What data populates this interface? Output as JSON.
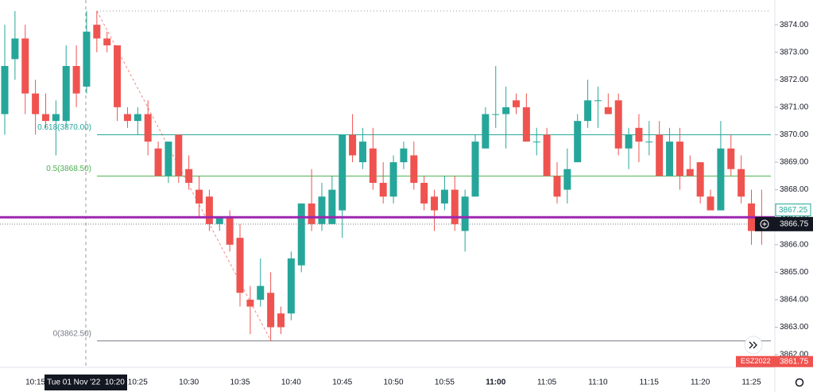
{
  "chart_data": {
    "type": "candlestick",
    "categories": [
      null,
      null,
      null,
      "10:15",
      null,
      null,
      null,
      null,
      null,
      null,
      null,
      null,
      null,
      "10:25",
      null,
      null,
      null,
      null,
      "10:30",
      null,
      null,
      null,
      null,
      "10:35",
      null,
      null,
      null,
      null,
      "10:40",
      null,
      null,
      null,
      null,
      "10:45",
      null,
      null,
      null,
      null,
      "10:50",
      null,
      null,
      null,
      null,
      "10:55",
      null,
      null,
      null,
      null,
      "11:00",
      null,
      null,
      null,
      null,
      "11:05",
      null,
      null,
      null,
      null,
      "11:10",
      null,
      null,
      null,
      null,
      "11:15",
      null,
      null,
      null,
      null,
      "11:20",
      null,
      null,
      null,
      null,
      "11:25",
      null,
      null
    ],
    "open": [
      3870.75,
      3872.75,
      3873.5,
      3871.5,
      3870.75,
      3870.5,
      3870.5,
      3872.5,
      3871.75,
      3874,
      3873.5,
      3873.25,
      3870.75,
      3870.5,
      3870.75,
      3869.5,
      3868.5,
      3870,
      3868.75,
      3868,
      3867.75,
      3866.75,
      3867,
      3866.25,
      3864,
      3864,
      3864.25,
      3863.5,
      3863.5,
      3865.25,
      3867.5,
      3866.75,
      3866.75,
      3867.25,
      3870,
      3869,
      3869.5,
      3868.25,
      3867.75,
      3869,
      3869.25,
      3868.25,
      3867.75,
      3867.5,
      3868,
      3866.5,
      3867.75,
      3869.5,
      3870.75,
      3870.75,
      3871.25,
      3871,
      3869.75,
      3870,
      3868.5,
      3868,
      3869,
      3870.5,
      3871.25,
      3871,
      3871.25,
      3869.5,
      3870.25,
      3869.75,
      3870,
      3868.5,
      3869.75,
      3868.75,
      3869,
      3867.75,
      3867.25,
      3869.5,
      3868.75,
      3867.5,
      3866.75,
      3866.5
    ],
    "high": [
      3874,
      3874.5,
      3874,
      3872,
      3871.5,
      3871.25,
      3873.25,
      3873.25,
      3874.5,
      3874.5,
      3873.75,
      3873.25,
      3871,
      3871,
      3871.25,
      3869.75,
      3869.75,
      3870,
      3869.25,
      3868.5,
      3868,
      3867,
      3867.25,
      3866.75,
      3864.5,
      3865.5,
      3865,
      3863.75,
      3865.75,
      3867.5,
      3868.75,
      3868.25,
      3868.5,
      3870,
      3870.75,
      3870.25,
      3870.25,
      3869,
      3869.25,
      3869.75,
      3869.75,
      3868.5,
      3868,
      3868.5,
      3868.5,
      3868,
      3870,
      3871,
      3872.5,
      3871.75,
      3871.5,
      3871.5,
      3870.25,
      3870.25,
      3869,
      3869.5,
      3870.75,
      3872,
      3871.75,
      3871.5,
      3871.5,
      3870.25,
      3870.75,
      3870.5,
      3870.5,
      3870.25,
      3870.25,
      3869.25,
      3869,
      3868,
      3870.5,
      3870,
      3869.25,
      3868,
      3868,
      3867
    ],
    "low": [
      3870,
      3872,
      3870.75,
      3870,
      3870.25,
      3869.25,
      3870.25,
      3871,
      3871.5,
      3873,
      3873,
      3870.5,
      3870.25,
      3870,
      3869.25,
      3868.5,
      3868.25,
      3868.25,
      3868,
      3867,
      3866.5,
      3866.5,
      3865.75,
      3863.75,
      3862.75,
      3863.75,
      3862.5,
      3862.75,
      3863.25,
      3865,
      3866.5,
      3866.5,
      3866.75,
      3866.25,
      3869,
      3868.75,
      3868,
      3867.5,
      3867.5,
      3868.75,
      3868,
      3867.25,
      3866.5,
      3867.25,
      3866.5,
      3865.75,
      3867.75,
      3869.5,
      3870.25,
      3869.5,
      3870.75,
      3869.75,
      3869.25,
      3868.5,
      3867.5,
      3867.5,
      3869,
      3870.25,
      3870.25,
      3870.75,
      3869.25,
      3868.75,
      3869,
      3869.25,
      3868.5,
      3868.5,
      3868,
      3868.5,
      3867.5,
      3867.25,
      3867.25,
      3868.5,
      3867.5,
      3866,
      3866,
      3866.5
    ],
    "close": [
      3872.5,
      3873.5,
      3871.5,
      3870.75,
      3870.5,
      3870.75,
      3872.5,
      3871.5,
      3873.75,
      3873.5,
      3873.25,
      3871,
      3870.5,
      3870.75,
      3869.75,
      3868.5,
      3869.75,
      3868.5,
      3868.25,
      3867.5,
      3866.75,
      3867,
      3866,
      3864.25,
      3863.75,
      3864.5,
      3863,
      3863,
      3865.5,
      3867.5,
      3866.75,
      3867.75,
      3868,
      3870,
      3869.25,
      3869.75,
      3868.25,
      3867.75,
      3869,
      3869.5,
      3868.25,
      3867.5,
      3867.25,
      3868,
      3866.75,
      3867.75,
      3869.75,
      3870.75,
      3870.75,
      3871,
      3871,
      3869.75,
      3869.75,
      3868.5,
      3867.75,
      3868.75,
      3870.5,
      3871.25,
      3871.25,
      3870.75,
      3869.5,
      3870,
      3869.75,
      3869.75,
      3868.5,
      3869.75,
      3868.5,
      3868.5,
      3867.75,
      3867.25,
      3869.5,
      3868.75,
      3867.75,
      3866.5,
      3866.5,
      3866.75
    ],
    "up_color": "#26a69a",
    "down_color": "#ef5350",
    "ylim": [
      3861.54,
      3874.9
    ],
    "yticks": [
      {
        "value": 3862,
        "label": "3862.00"
      },
      {
        "value": 3863,
        "label": "3863.00"
      },
      {
        "value": 3864,
        "label": "3864.00"
      },
      {
        "value": 3865,
        "label": "3865.00"
      },
      {
        "value": 3866,
        "label": "3866.00"
      },
      {
        "value": 3867,
        "label": "3867.00"
      },
      {
        "value": 3868,
        "label": "3868.00"
      },
      {
        "value": 3869,
        "label": "3869.00"
      },
      {
        "value": 3870,
        "label": "3870.00"
      },
      {
        "value": 3871,
        "label": "3871.00"
      },
      {
        "value": 3872,
        "label": "3872.00"
      },
      {
        "value": 3873,
        "label": "3873.00"
      },
      {
        "value": 3874,
        "label": "3874.00"
      }
    ],
    "fib_levels": [
      {
        "value": 3874.5,
        "color": "#9e9e9e"
      },
      {
        "value": 3870,
        "label": "0.618(3870.00)",
        "color": "#26a69a"
      },
      {
        "value": 3868.5,
        "label": "0.5(3868.50)",
        "color": "#4caf50"
      },
      {
        "value": 3862.5,
        "label": "0(3862.50)",
        "color": "#787b86"
      }
    ],
    "horizontal_line": {
      "value": 3867,
      "color": "#9c27b0"
    },
    "price_tags": [
      3867.25,
      3866.75
    ],
    "symbol_tag": {
      "name": "ESZ2022",
      "value": 3861.75
    },
    "crosshair_label": "Tue 01 Nov '22  10:20"
  }
}
